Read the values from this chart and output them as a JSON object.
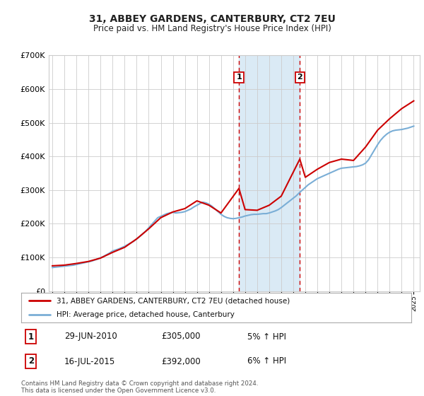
{
  "title": "31, ABBEY GARDENS, CANTERBURY, CT2 7EU",
  "subtitle": "Price paid vs. HM Land Registry's House Price Index (HPI)",
  "legend_line1": "31, ABBEY GARDENS, CANTERBURY, CT2 7EU (detached house)",
  "legend_line2": "HPI: Average price, detached house, Canterbury",
  "annotation1_label": "1",
  "annotation1_date": "29-JUN-2010",
  "annotation1_price": "£305,000",
  "annotation1_hpi": "5% ↑ HPI",
  "annotation1_year": 2010.49,
  "annotation2_label": "2",
  "annotation2_date": "16-JUL-2015",
  "annotation2_price": "£392,000",
  "annotation2_hpi": "6% ↑ HPI",
  "annotation2_year": 2015.54,
  "footer": "Contains HM Land Registry data © Crown copyright and database right 2024.\nThis data is licensed under the Open Government Licence v3.0.",
  "red_color": "#cc0000",
  "blue_color": "#7aaed6",
  "shade_color": "#daeaf5",
  "grid_color": "#cccccc",
  "bg_color": "#ffffff",
  "ylim": [
    0,
    700000
  ],
  "xlim_start": 1994.7,
  "xlim_end": 2025.5,
  "hpi_years": [
    1995,
    1995.25,
    1995.5,
    1995.75,
    1996,
    1996.25,
    1996.5,
    1996.75,
    1997,
    1997.25,
    1997.5,
    1997.75,
    1998,
    1998.25,
    1998.5,
    1998.75,
    1999,
    1999.25,
    1999.5,
    1999.75,
    2000,
    2000.25,
    2000.5,
    2000.75,
    2001,
    2001.25,
    2001.5,
    2001.75,
    2002,
    2002.25,
    2002.5,
    2002.75,
    2003,
    2003.25,
    2003.5,
    2003.75,
    2004,
    2004.25,
    2004.5,
    2004.75,
    2005,
    2005.25,
    2005.5,
    2005.75,
    2006,
    2006.25,
    2006.5,
    2006.75,
    2007,
    2007.25,
    2007.5,
    2007.75,
    2008,
    2008.25,
    2008.5,
    2008.75,
    2009,
    2009.25,
    2009.5,
    2009.75,
    2010,
    2010.25,
    2010.5,
    2010.75,
    2011,
    2011.25,
    2011.5,
    2011.75,
    2012,
    2012.25,
    2012.5,
    2012.75,
    2013,
    2013.25,
    2013.5,
    2013.75,
    2014,
    2014.25,
    2014.5,
    2014.75,
    2015,
    2015.25,
    2015.5,
    2015.75,
    2016,
    2016.25,
    2016.5,
    2016.75,
    2017,
    2017.25,
    2017.5,
    2017.75,
    2018,
    2018.25,
    2018.5,
    2018.75,
    2019,
    2019.25,
    2019.5,
    2019.75,
    2020,
    2020.25,
    2020.5,
    2020.75,
    2021,
    2021.25,
    2021.5,
    2021.75,
    2022,
    2022.25,
    2022.5,
    2022.75,
    2023,
    2023.25,
    2023.5,
    2023.75,
    2024,
    2024.25,
    2024.5,
    2024.75,
    2025
  ],
  "hpi_values": [
    70000,
    71000,
    72000,
    73000,
    74000,
    75000,
    76000,
    77000,
    79000,
    81000,
    83000,
    85000,
    87000,
    89000,
    92000,
    95000,
    99000,
    103000,
    108000,
    113000,
    119000,
    122000,
    125000,
    129000,
    133000,
    138000,
    143000,
    148000,
    155000,
    162000,
    170000,
    178000,
    188000,
    198000,
    208000,
    218000,
    222000,
    226000,
    230000,
    232000,
    234000,
    232000,
    233000,
    234000,
    236000,
    240000,
    244000,
    250000,
    255000,
    260000,
    264000,
    262000,
    258000,
    252000,
    244000,
    236000,
    228000,
    222000,
    218000,
    216000,
    215000,
    216000,
    218000,
    220000,
    223000,
    225000,
    227000,
    228000,
    228000,
    229000,
    230000,
    230000,
    232000,
    235000,
    238000,
    242000,
    248000,
    255000,
    262000,
    269000,
    276000,
    283000,
    292000,
    300000,
    308000,
    316000,
    322000,
    328000,
    334000,
    338000,
    342000,
    346000,
    350000,
    354000,
    358000,
    362000,
    365000,
    366000,
    367000,
    368000,
    369000,
    370000,
    372000,
    375000,
    380000,
    390000,
    405000,
    420000,
    435000,
    448000,
    458000,
    466000,
    472000,
    476000,
    478000,
    479000,
    480000,
    482000,
    484000,
    487000,
    490000
  ],
  "property_years": [
    1995,
    1996,
    1997,
    1998,
    1999,
    2000,
    2001,
    2002,
    2003,
    2004,
    2005,
    2006,
    2007,
    2008,
    2009,
    2010.49,
    2011,
    2012,
    2013,
    2014,
    2015.54,
    2016,
    2017,
    2018,
    2019,
    2020,
    2021,
    2022,
    2023,
    2024,
    2025.0
  ],
  "property_values": [
    75000,
    77000,
    82000,
    88000,
    98000,
    115000,
    130000,
    155000,
    185000,
    218000,
    235000,
    245000,
    268000,
    255000,
    232000,
    305000,
    242000,
    240000,
    255000,
    282000,
    392000,
    338000,
    362000,
    382000,
    392000,
    388000,
    428000,
    478000,
    512000,
    542000,
    565000
  ]
}
